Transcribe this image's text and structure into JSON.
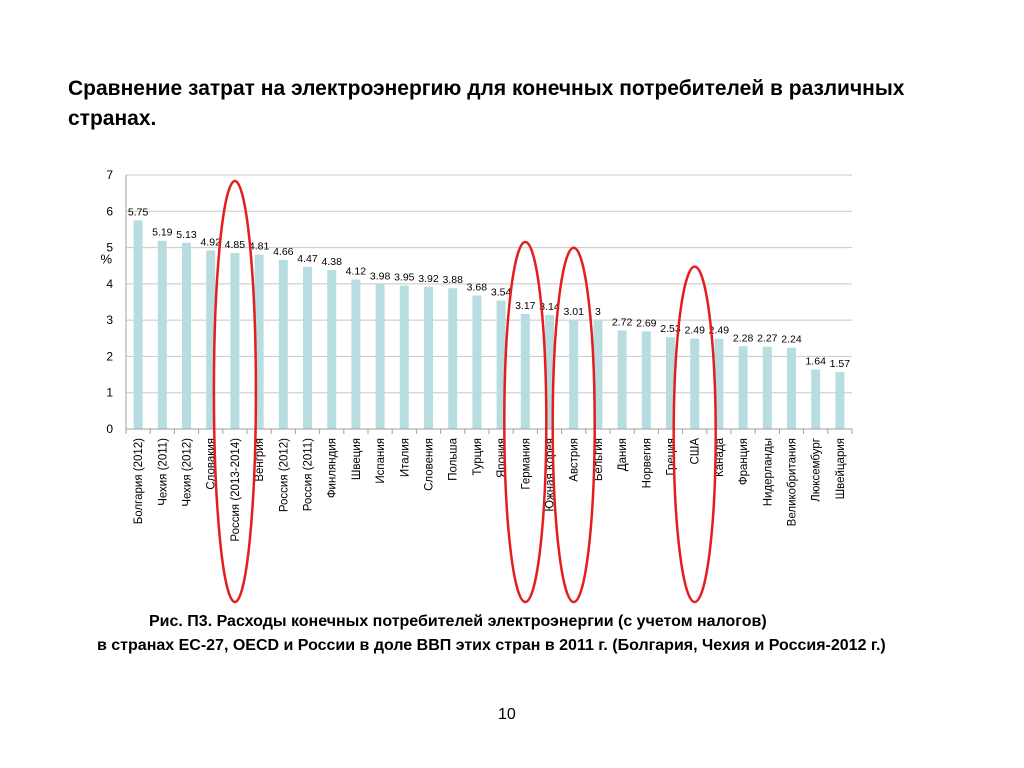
{
  "slide": {
    "title": "Сравнение затрат на электроэнергию для конечных потребителей в различных странах.",
    "caption_line1": "Рис. П3. Расходы конечных потребителей электроэнергии (с учетом налогов)",
    "caption_rest": "в странах ЕС-27, OECD  и России в доле ВВП этих стран в 2011 г. (Болгария, Чехия и Россия-2012 г.)",
    "page_number": "10"
  },
  "chart_data": {
    "type": "bar",
    "ylabel": "%",
    "ylim": [
      0,
      7
    ],
    "yticks": [
      0,
      1,
      2,
      3,
      4,
      5,
      6,
      7
    ],
    "grid": true,
    "bar_color": "#b7dde0",
    "highlight_color": "#e41e1e",
    "categories": [
      "Болгария (2012)",
      "Чехия (2011)",
      "Чехия (2012)",
      "Словакия",
      "Россия (2013-2014)",
      "Венгрия",
      "Россия (2012)",
      "Россия (2011)",
      "Финляндия",
      "Швеция",
      "Испания",
      "Италия",
      "Словения",
      "Польша",
      "Турция",
      "Япония",
      "Германия",
      "Южная Корея",
      "Австрия",
      "Бельгия",
      "Дания",
      "Норвегия",
      "Греция",
      "США",
      "Канада",
      "Франция",
      "Нидерланды",
      "Великобритания",
      "Люксембург",
      "Швейцария"
    ],
    "values": [
      5.75,
      5.19,
      5.13,
      4.92,
      4.85,
      4.81,
      4.66,
      4.47,
      4.38,
      4.12,
      3.98,
      3.95,
      3.92,
      3.88,
      3.68,
      3.54,
      3.17,
      3.14,
      3.01,
      3,
      2.72,
      2.69,
      2.53,
      2.49,
      2.49,
      2.28,
      2.27,
      2.24,
      1.64,
      1.57
    ],
    "data_labels": [
      "5.75",
      "5.19",
      "5.13",
      "4.92",
      "4.85",
      "4.81",
      "4.66",
      "4.47",
      "4.38",
      "4.12",
      "3.98",
      "3.95",
      "3.92",
      "3.88",
      "3.68",
      "3.54",
      "3.17",
      "3.14",
      "3.01",
      "3",
      "2.72",
      "2.69",
      "2.53",
      "2.49",
      "2.49",
      "2.28",
      "2.27",
      "2.24",
      "1.64",
      "1.57"
    ],
    "highlighted": [
      "Россия (2013-2014)",
      "Германия",
      "Австрия",
      "США"
    ]
  }
}
